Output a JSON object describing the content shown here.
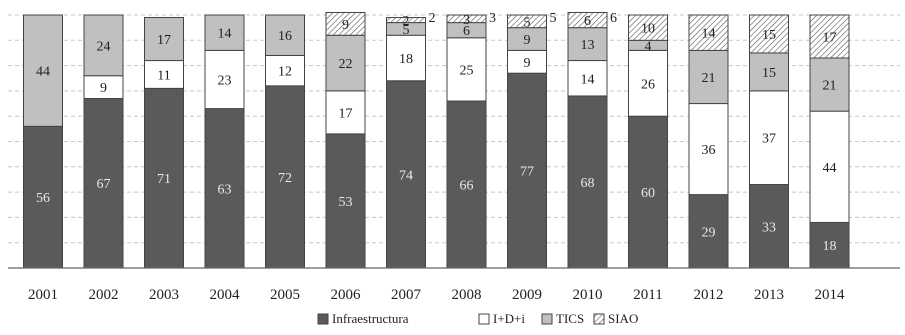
{
  "chart_data": {
    "type": "bar",
    "stacked": true,
    "normalized_percent": true,
    "categories": [
      "2001",
      "2002",
      "2003",
      "2004",
      "2005",
      "2006",
      "2007",
      "2008",
      "2009",
      "2010",
      "2011",
      "2012",
      "2013",
      "2014"
    ],
    "series": [
      {
        "name": "Infraestructura",
        "values": [
          56,
          67,
          71,
          63,
          72,
          53,
          74,
          66,
          77,
          68,
          60,
          29,
          33,
          18
        ],
        "color": "#5a5a5a",
        "pattern": "solid"
      },
      {
        "name": "I+D+i",
        "values": [
          0,
          9,
          11,
          23,
          12,
          17,
          18,
          25,
          9,
          14,
          26,
          36,
          37,
          44
        ],
        "color": "#ffffff",
        "pattern": "solid"
      },
      {
        "name": "TICS",
        "values": [
          44,
          24,
          17,
          14,
          16,
          22,
          5,
          6,
          9,
          13,
          4,
          21,
          15,
          21
        ],
        "color": "#c0c0c0",
        "pattern": "solid"
      },
      {
        "name": "SIAO",
        "values": [
          0,
          0,
          0,
          0,
          0,
          9,
          2,
          3,
          5,
          6,
          10,
          14,
          15,
          17
        ],
        "color": "#ffffff",
        "pattern": "hatch"
      }
    ],
    "data_labels": {
      "Infraestructura": [
        "56",
        "67",
        "71",
        "63",
        "72",
        "53",
        "74",
        "66",
        "77",
        "68",
        "60",
        "29",
        "33",
        "18"
      ],
      "I+D+i": [
        "",
        "9",
        "11",
        "23",
        "12",
        "17",
        "18",
        "25",
        "9",
        "14",
        "26",
        "36",
        "37",
        "44"
      ],
      "TICS": [
        "44",
        "24",
        "17",
        "14",
        "16",
        "22",
        "5",
        "6",
        "9",
        "13",
        "4",
        "21",
        "15",
        "21"
      ],
      "SIAO": [
        "",
        "",
        "",
        "",
        "",
        "9",
        "2",
        "3",
        "5",
        "6",
        "10",
        "14",
        "15",
        "17"
      ]
    },
    "outside_labels": {
      "2007": "2",
      "2008": "3",
      "2009": "5",
      "2010": "6"
    },
    "ylim": [
      0,
      100
    ],
    "grid": true,
    "legend": "bottom-center",
    "title": "",
    "xlabel": "",
    "ylabel": ""
  }
}
